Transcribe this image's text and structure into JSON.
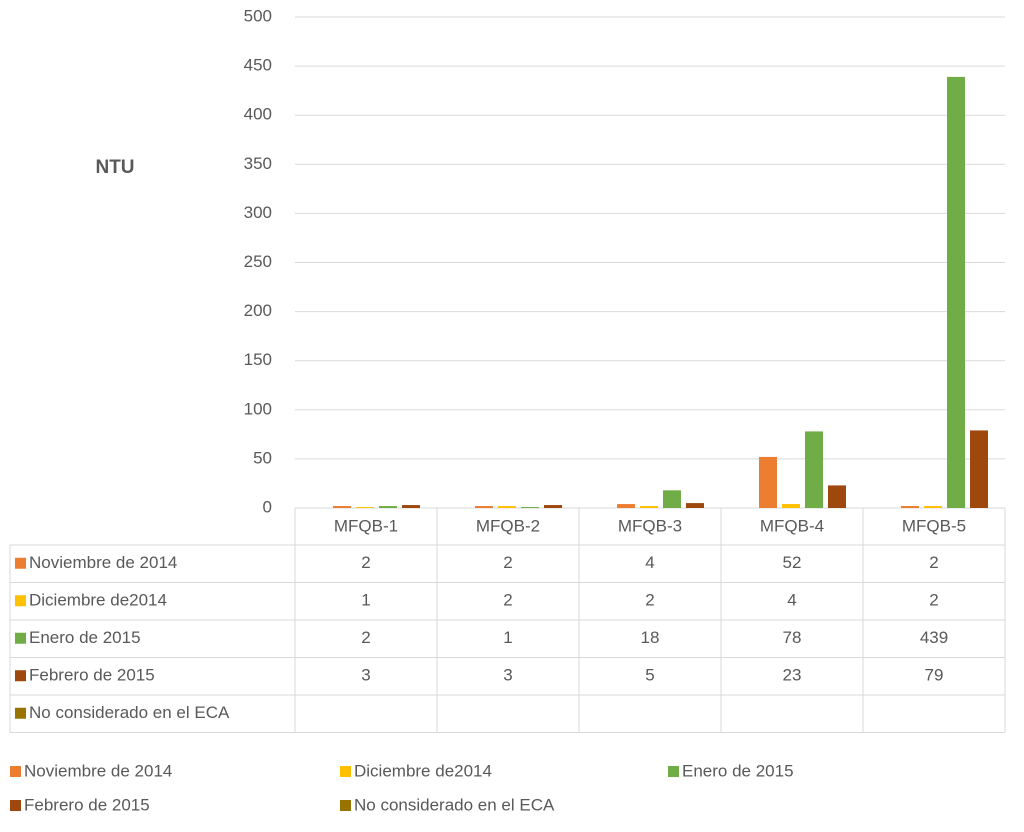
{
  "chart_data": {
    "type": "bar",
    "y_label": "NTU",
    "categories": [
      "MFQB-1",
      "MFQB-2",
      "MFQB-3",
      "MFQB-4",
      "MFQB-5"
    ],
    "series": [
      {
        "name": "Noviembre de 2014",
        "color": "#ed7d31",
        "values": [
          2,
          2,
          4,
          52,
          2
        ]
      },
      {
        "name": "Diciembre de2014",
        "color": "#ffc000",
        "values": [
          1,
          2,
          2,
          4,
          2
        ]
      },
      {
        "name": "Enero de 2015",
        "color": "#70ad47",
        "values": [
          2,
          1,
          18,
          78,
          439
        ]
      },
      {
        "name": "Febrero de 2015",
        "color": "#9e480e",
        "values": [
          3,
          3,
          5,
          23,
          79
        ]
      },
      {
        "name": "No considerado en el ECA",
        "color": "#997300",
        "values": [
          null,
          null,
          null,
          null,
          null
        ]
      }
    ],
    "ylim": [
      0,
      500
    ],
    "yticks": [
      0,
      50,
      100,
      150,
      200,
      250,
      300,
      350,
      400,
      450,
      500
    ],
    "grid": true,
    "data_table": true,
    "legend": "bottom"
  }
}
